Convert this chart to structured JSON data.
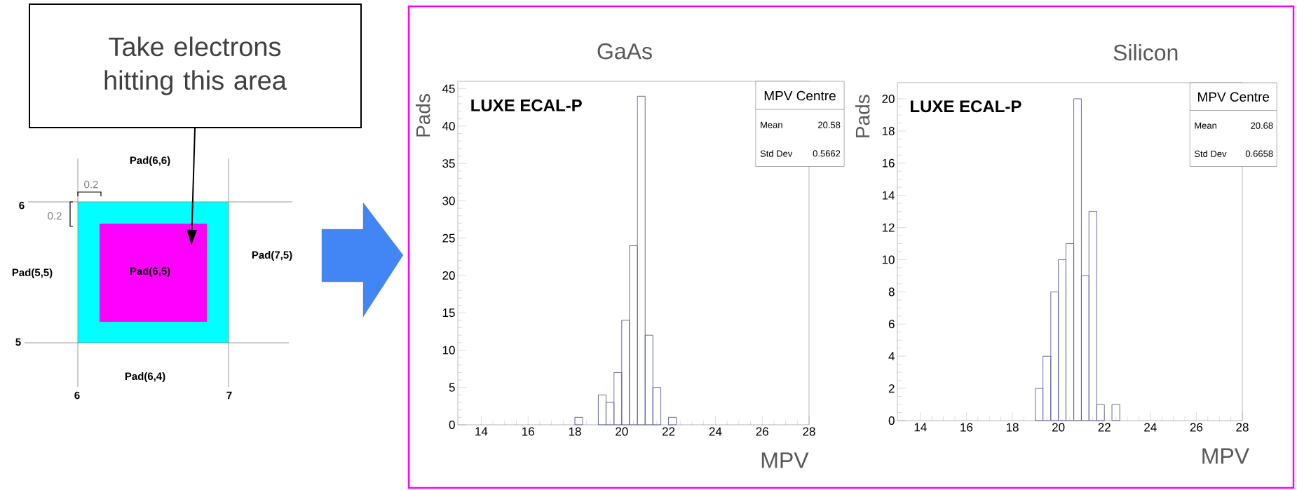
{
  "chart_data": [
    {
      "type": "other",
      "annotations": [
        "Take electrons hitting this area",
        "Pad(6,6)",
        "0.2",
        "0.2",
        "6",
        "Pad(5,5)",
        "Pad(6,5)",
        "Pad(7,5)",
        "5",
        "Pad(6,4)",
        "6",
        "7"
      ]
    },
    {
      "type": "histogram",
      "title": "GaAs",
      "xlabel": "MPV",
      "ylabel": "Pads",
      "bins": [
        18,
        18.33,
        18.67,
        19,
        19.33,
        19.67,
        20,
        20.33,
        20.67,
        21,
        21.33,
        21.67,
        22,
        22.33
      ],
      "values": [
        1,
        0,
        0,
        4,
        3,
        7,
        14,
        24,
        44,
        12,
        5,
        0,
        1
      ],
      "color": "#5c5c99",
      "xlim": [
        13,
        28
      ],
      "ylim": [
        0,
        46
      ],
      "xticks": [
        14,
        16,
        18,
        20,
        22,
        24,
        26,
        28
      ],
      "yticks": [
        0,
        5,
        10,
        15,
        20,
        25,
        30,
        35,
        40,
        45
      ],
      "annotations": [
        "LUXE ECAL-P",
        "MPV Centre",
        "Mean",
        "20.58",
        "Std Dev",
        "0.5662"
      ]
    },
    {
      "type": "histogram",
      "title": "Silicon",
      "xlabel": "MPV",
      "ylabel": "Pads",
      "bins": [
        19,
        19.33,
        19.67,
        20,
        20.33,
        20.67,
        21,
        21.33,
        21.67,
        22,
        22.33,
        22.67
      ],
      "values": [
        2,
        4,
        8,
        10,
        11,
        20,
        9,
        13,
        1,
        0,
        1
      ],
      "color": "#5c5c99",
      "xlim": [
        13,
        28
      ],
      "ylim": [
        0,
        21
      ],
      "xticks": [
        14,
        16,
        18,
        20,
        22,
        24,
        26,
        28
      ],
      "yticks": [
        0,
        2,
        4,
        6,
        8,
        10,
        12,
        14,
        16,
        18,
        20
      ],
      "annotations": [
        "LUXE ECAL-P",
        "MPV Centre",
        "Mean",
        "20.68",
        "Std Dev",
        "0.6658"
      ]
    }
  ]
}
